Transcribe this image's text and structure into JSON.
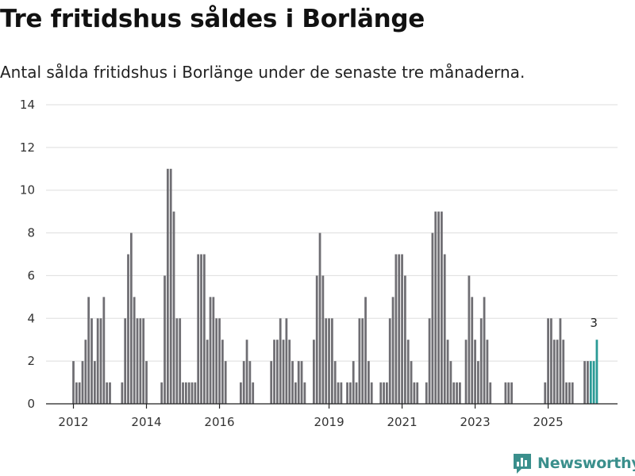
{
  "title": "Tre fritidshus såldes i Borlänge",
  "subtitle": "Antal sålda fritidshus i Borlänge under de senaste tre månaderna.",
  "brand": {
    "name": "Newsworthy",
    "logo_icon": "bar-chart-logo-icon",
    "color": "#3a8f8c"
  },
  "colors": {
    "bar": "#6f6e73",
    "highlight": "#2a9a96",
    "grid": "#dddddd"
  },
  "chart_data": {
    "type": "bar",
    "ylim": [
      0,
      14
    ],
    "yticks": [
      0,
      2,
      4,
      6,
      8,
      10,
      12,
      14
    ],
    "xlim": [
      2011.25,
      2026.9
    ],
    "xticks": [
      {
        "label": "2012",
        "value": 2012
      },
      {
        "label": "2014",
        "value": 2014
      },
      {
        "label": "2016",
        "value": 2016
      },
      {
        "label": "2019",
        "value": 2019
      },
      {
        "label": "2021",
        "value": 2021
      },
      {
        "label": "2023",
        "value": 2023
      },
      {
        "label": "2025",
        "value": 2025
      }
    ],
    "start": 2012,
    "step": 0.0833333,
    "values": [
      2,
      1,
      1,
      2,
      3,
      5,
      4,
      2,
      4,
      4,
      5,
      1,
      1,
      0,
      0,
      0,
      1,
      4,
      7,
      8,
      5,
      4,
      4,
      4,
      2,
      0,
      0,
      0,
      0,
      1,
      6,
      11,
      11,
      9,
      4,
      4,
      1,
      1,
      1,
      1,
      1,
      7,
      7,
      7,
      3,
      5,
      5,
      4,
      4,
      3,
      2,
      0,
      0,
      0,
      0,
      1,
      2,
      3,
      2,
      1,
      0,
      0,
      0,
      0,
      0,
      2,
      3,
      3,
      4,
      3,
      4,
      3,
      2,
      1,
      2,
      2,
      1,
      0,
      0,
      3,
      6,
      8,
      6,
      4,
      4,
      4,
      2,
      1,
      1,
      0,
      1,
      1,
      2,
      1,
      4,
      4,
      5,
      2,
      1,
      0,
      0,
      1,
      1,
      1,
      4,
      5,
      7,
      7,
      7,
      6,
      3,
      2,
      1,
      1,
      0,
      0,
      1,
      4,
      8,
      9,
      9,
      9,
      7,
      3,
      2,
      1,
      1,
      1,
      0,
      3,
      6,
      5,
      3,
      2,
      4,
      5,
      3,
      1,
      0,
      0,
      0,
      0,
      1,
      1,
      1,
      0,
      0,
      0,
      0,
      0,
      0,
      0,
      0,
      0,
      0,
      1,
      4,
      4,
      3,
      3,
      4,
      3,
      1,
      1,
      1,
      0,
      0,
      0,
      2,
      2,
      2,
      2,
      3
    ],
    "highlight_last": 3,
    "annotation": {
      "label": "3"
    }
  }
}
